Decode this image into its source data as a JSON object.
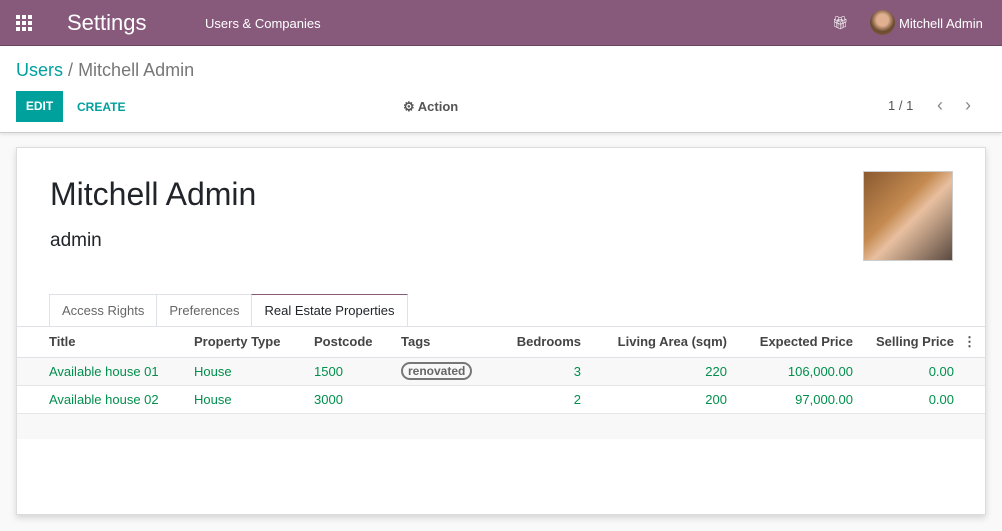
{
  "navbar": {
    "app_title": "Settings",
    "menu": "Users & Companies",
    "user": "Mitchell Admin",
    "icons": [
      "apps-grid-icon",
      "gift-icon"
    ]
  },
  "breadcrumb": {
    "parent": "Users",
    "separator": "/",
    "current": "Mitchell Admin"
  },
  "buttons": {
    "edit": "EDIT",
    "create": "CREATE",
    "action": "Action"
  },
  "pager": {
    "value": "1 / 1"
  },
  "form": {
    "name": "Mitchell Admin",
    "login": "admin",
    "tabs": [
      "Access Rights",
      "Preferences",
      "Real Estate Properties"
    ],
    "active_tab": "Real Estate Properties",
    "table": {
      "headers": [
        "Title",
        "Property Type",
        "Postcode",
        "Tags",
        "Bedrooms",
        "Living Area (sqm)",
        "Expected Price",
        "Selling Price"
      ],
      "rows": [
        {
          "title": "Available house 01",
          "type": "House",
          "postcode": "1500",
          "tag": "renovated",
          "bedrooms": "3",
          "area": "220",
          "expected": "106,000.00",
          "selling": "0.00"
        },
        {
          "title": "Available house 02",
          "type": "House",
          "postcode": "3000",
          "tag": "",
          "bedrooms": "2",
          "area": "200",
          "expected": "97,000.00",
          "selling": "0.00"
        }
      ]
    }
  },
  "colors": {
    "brand": "#875A7B",
    "accent": "#00A09D",
    "row_text": "#008f4c"
  }
}
